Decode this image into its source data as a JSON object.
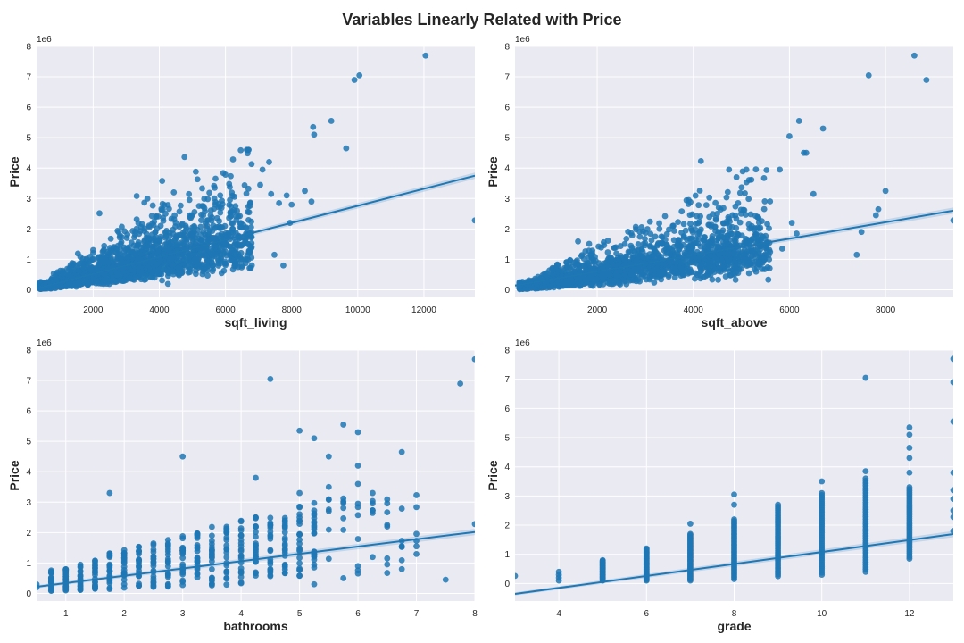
{
  "figure": {
    "suptitle": "Variables Linearly Related with Price",
    "style": {
      "face": "#EAEAF2",
      "grid": "#FFFFFF",
      "point": "#1F77B4",
      "line": "#1F77B4"
    }
  },
  "chart_data": [
    {
      "type": "scatter",
      "xlabel": "sqft_living",
      "ylabel": "Price",
      "y_offset_label": "1e6",
      "xlim": [
        290,
        13540
      ],
      "ylim": [
        -0.25,
        8.0
      ],
      "xticks": [
        2000,
        4000,
        6000,
        8000,
        10000,
        12000
      ],
      "yticks": [
        0,
        1,
        2,
        3,
        4,
        5,
        6,
        7,
        8
      ],
      "grid": true,
      "regression": {
        "intercept": -0.04,
        "slope": 0.00028
      },
      "points": [
        [
          7050,
          3.45
        ],
        [
          7120,
          3.95
        ],
        [
          7320,
          4.2
        ],
        [
          7380,
          3.15
        ],
        [
          7480,
          1.15
        ],
        [
          7620,
          2.85
        ],
        [
          7750,
          0.8
        ],
        [
          7850,
          3.1
        ],
        [
          7950,
          2.2
        ],
        [
          8000,
          2.8
        ],
        [
          8400,
          3.25
        ],
        [
          8600,
          2.9
        ],
        [
          8650,
          5.35
        ],
        [
          8680,
          5.1
        ],
        [
          9200,
          5.55
        ],
        [
          9650,
          4.65
        ],
        [
          9900,
          6.9
        ],
        [
          10050,
          7.05
        ],
        [
          12050,
          7.7
        ],
        [
          13540,
          2.28
        ]
      ]
    },
    {
      "type": "scatter",
      "xlabel": "sqft_above",
      "ylabel": "Price",
      "y_offset_label": "1e6",
      "xlim": [
        290,
        9410
      ],
      "ylim": [
        -0.25,
        8.0
      ],
      "xticks": [
        2000,
        4000,
        6000,
        8000
      ],
      "yticks": [
        0,
        1,
        2,
        3,
        4,
        5,
        6,
        7,
        8
      ],
      "grid": true,
      "regression": {
        "intercept": 0.06,
        "slope": 0.00027
      },
      "points": [
        [
          5800,
          3.95
        ],
        [
          5850,
          1.35
        ],
        [
          6000,
          5.05
        ],
        [
          6050,
          2.2
        ],
        [
          6150,
          1.85
        ],
        [
          6200,
          5.55
        ],
        [
          6300,
          4.5
        ],
        [
          6350,
          4.5
        ],
        [
          6500,
          3.15
        ],
        [
          6700,
          5.3
        ],
        [
          7400,
          1.15
        ],
        [
          7500,
          1.9
        ],
        [
          7650,
          7.05
        ],
        [
          7800,
          2.45
        ],
        [
          7850,
          2.65
        ],
        [
          8000,
          3.25
        ],
        [
          8600,
          7.7
        ],
        [
          8850,
          6.9
        ],
        [
          9410,
          2.28
        ]
      ]
    },
    {
      "type": "scatter",
      "xlabel": "bathrooms",
      "ylabel": "Price",
      "y_offset_label": "1e6",
      "xlim": [
        0.5,
        8.0
      ],
      "ylim": [
        -0.25,
        8.0
      ],
      "xticks": [
        1,
        2,
        3,
        4,
        5,
        6,
        7,
        8
      ],
      "yticks": [
        0,
        1,
        2,
        3,
        4,
        5,
        6,
        7,
        8
      ],
      "grid": true,
      "regression": {
        "intercept": 0.1,
        "slope": 0.24
      },
      "points": [
        [
          0.5,
          0.2
        ],
        [
          0.5,
          0.3
        ],
        [
          1.75,
          3.3
        ],
        [
          3.0,
          4.5
        ],
        [
          4.25,
          3.8
        ],
        [
          4.5,
          7.05
        ],
        [
          5.0,
          5.35
        ],
        [
          5.0,
          3.3
        ],
        [
          5.25,
          5.1
        ],
        [
          5.25,
          0.3
        ],
        [
          5.5,
          4.5
        ],
        [
          5.5,
          3.5
        ],
        [
          5.75,
          5.55
        ],
        [
          5.75,
          0.5
        ],
        [
          6.0,
          5.3
        ],
        [
          6.0,
          4.2
        ],
        [
          6.0,
          3.6
        ],
        [
          6.0,
          0.9
        ],
        [
          6.25,
          3.3
        ],
        [
          6.5,
          2.2
        ],
        [
          6.5,
          1.15
        ],
        [
          6.75,
          4.65
        ],
        [
          6.75,
          0.8
        ],
        [
          7.5,
          0.45
        ],
        [
          7.75,
          6.9
        ],
        [
          8.0,
          7.7
        ],
        [
          8.0,
          2.28
        ]
      ]
    },
    {
      "type": "scatter",
      "xlabel": "grade",
      "ylabel": "Price",
      "y_offset_label": "1e6",
      "xlim": [
        3,
        13
      ],
      "ylim": [
        -0.6,
        8.0
      ],
      "xticks": [
        4,
        6,
        8,
        10,
        12
      ],
      "yticks": [
        0,
        1,
        2,
        3,
        4,
        5,
        6,
        7,
        8
      ],
      "grid": true,
      "regression": {
        "intercept": -0.97,
        "slope": 0.205
      },
      "points": [
        [
          3,
          0.26
        ],
        [
          4,
          0.1
        ],
        [
          4,
          0.2
        ],
        [
          4,
          0.3
        ],
        [
          4,
          0.4
        ],
        [
          11,
          7.05
        ],
        [
          13,
          7.7
        ],
        [
          13,
          6.9
        ],
        [
          13,
          5.55
        ],
        [
          13,
          3.8
        ],
        [
          13,
          3.2
        ],
        [
          13,
          2.9
        ],
        [
          13,
          2.5
        ],
        [
          13,
          2.28
        ],
        [
          13,
          1.8
        ]
      ],
      "columns": [
        {
          "x": 5,
          "min": 0.1,
          "max": 0.8
        },
        {
          "x": 6,
          "min": 0.1,
          "max": 1.2
        },
        {
          "x": 7,
          "min": 0.1,
          "max": 1.7,
          "outliers": [
            2.05
          ]
        },
        {
          "x": 8,
          "min": 0.15,
          "max": 2.2,
          "outliers": [
            2.7,
            3.05
          ]
        },
        {
          "x": 9,
          "min": 0.25,
          "max": 2.7
        },
        {
          "x": 10,
          "min": 0.3,
          "max": 3.1,
          "outliers": [
            3.5
          ]
        },
        {
          "x": 11,
          "min": 0.4,
          "max": 3.6,
          "outliers": [
            3.85
          ]
        },
        {
          "x": 12,
          "min": 0.85,
          "max": 3.3,
          "outliers": [
            3.8,
            4.3,
            4.65,
            5.1,
            5.35
          ]
        }
      ]
    }
  ]
}
